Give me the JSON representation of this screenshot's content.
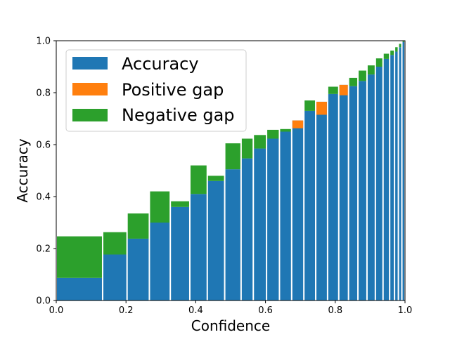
{
  "chart_data": {
    "type": "bar",
    "xlabel": "Confidence",
    "ylabel": "Accuracy",
    "xlim": [
      0,
      1
    ],
    "ylim": [
      0,
      1
    ],
    "xticks": [
      "0.0",
      "0.2",
      "0.4",
      "0.6",
      "0.8",
      "1.0"
    ],
    "yticks": [
      "0.0",
      "0.2",
      "0.4",
      "0.6",
      "0.8",
      "1.0"
    ],
    "grid": false,
    "legend_position": "top-left",
    "colors": {
      "accuracy": "#1f77b4",
      "positive_gap": "#ff7f0e",
      "negative_gap": "#2ca02c"
    },
    "legend": [
      "Accuracy",
      "Positive gap",
      "Negative gap"
    ],
    "bins": [
      {
        "left": 0.0,
        "right": 0.133,
        "accuracy": 0.087,
        "confidence": 0.247
      },
      {
        "left": 0.133,
        "right": 0.203,
        "accuracy": 0.177,
        "confidence": 0.263
      },
      {
        "left": 0.203,
        "right": 0.267,
        "accuracy": 0.238,
        "confidence": 0.335
      },
      {
        "left": 0.267,
        "right": 0.327,
        "accuracy": 0.3,
        "confidence": 0.42
      },
      {
        "left": 0.327,
        "right": 0.383,
        "accuracy": 0.36,
        "confidence": 0.382
      },
      {
        "left": 0.383,
        "right": 0.433,
        "accuracy": 0.41,
        "confidence": 0.52
      },
      {
        "left": 0.433,
        "right": 0.483,
        "accuracy": 0.46,
        "confidence": 0.48
      },
      {
        "left": 0.483,
        "right": 0.53,
        "accuracy": 0.505,
        "confidence": 0.605
      },
      {
        "left": 0.53,
        "right": 0.565,
        "accuracy": 0.547,
        "confidence": 0.623
      },
      {
        "left": 0.565,
        "right": 0.603,
        "accuracy": 0.585,
        "confidence": 0.637
      },
      {
        "left": 0.603,
        "right": 0.64,
        "accuracy": 0.623,
        "confidence": 0.657
      },
      {
        "left": 0.64,
        "right": 0.675,
        "accuracy": 0.65,
        "confidence": 0.66
      },
      {
        "left": 0.675,
        "right": 0.71,
        "accuracy": 0.693,
        "confidence": 0.663
      },
      {
        "left": 0.71,
        "right": 0.744,
        "accuracy": 0.73,
        "confidence": 0.77
      },
      {
        "left": 0.744,
        "right": 0.778,
        "accuracy": 0.765,
        "confidence": 0.715
      },
      {
        "left": 0.778,
        "right": 0.81,
        "accuracy": 0.795,
        "confidence": 0.823
      },
      {
        "left": 0.81,
        "right": 0.838,
        "accuracy": 0.83,
        "confidence": 0.79
      },
      {
        "left": 0.838,
        "right": 0.865,
        "accuracy": 0.825,
        "confidence": 0.857
      },
      {
        "left": 0.865,
        "right": 0.891,
        "accuracy": 0.845,
        "confidence": 0.885
      },
      {
        "left": 0.891,
        "right": 0.915,
        "accuracy": 0.87,
        "confidence": 0.905
      },
      {
        "left": 0.915,
        "right": 0.937,
        "accuracy": 0.9,
        "confidence": 0.932
      },
      {
        "left": 0.937,
        "right": 0.956,
        "accuracy": 0.93,
        "confidence": 0.95
      },
      {
        "left": 0.956,
        "right": 0.97,
        "accuracy": 0.945,
        "confidence": 0.962
      },
      {
        "left": 0.97,
        "right": 0.981,
        "accuracy": 0.958,
        "confidence": 0.975
      },
      {
        "left": 0.981,
        "right": 0.991,
        "accuracy": 0.975,
        "confidence": 0.988
      },
      {
        "left": 0.991,
        "right": 1.0,
        "accuracy": 0.995,
        "confidence": 0.999
      }
    ]
  }
}
